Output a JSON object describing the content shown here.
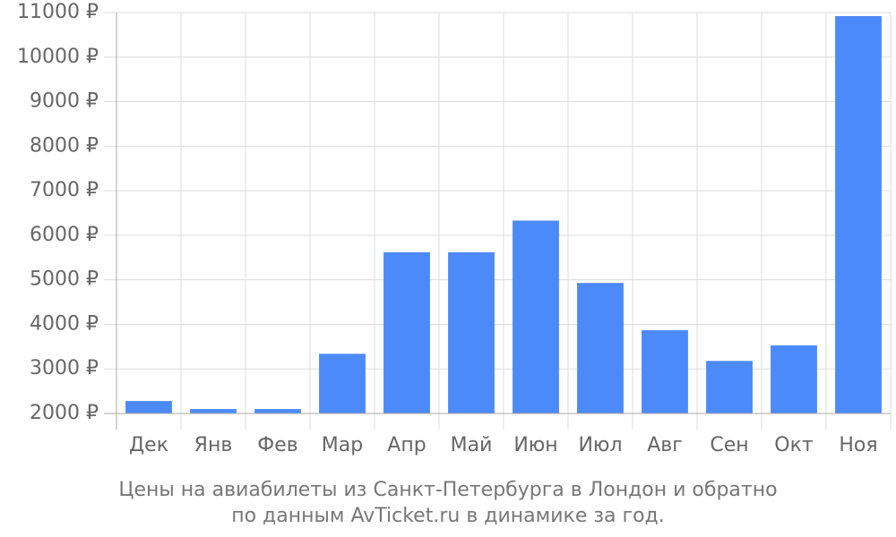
{
  "chart_data": {
    "type": "bar",
    "categories": [
      "Дек",
      "Янв",
      "Фев",
      "Мар",
      "Апр",
      "Май",
      "Июн",
      "Июл",
      "Авг",
      "Сен",
      "Окт",
      "Ноя"
    ],
    "series": [
      {
        "values": [
          2280,
          2100,
          2100,
          3340,
          5620,
          5620,
          6330,
          4930,
          3870,
          3180,
          3530,
          10920
        ]
      }
    ],
    "ylim": [
      2000,
      11000
    ],
    "yticks": [
      2000,
      3000,
      4000,
      5000,
      6000,
      7000,
      8000,
      9000,
      10000,
      11000
    ],
    "y_tick_suffix": " ₽",
    "grid": true,
    "bar_color": "#4d8af9"
  },
  "caption": {
    "line1": "Цены на авиабилеты из Санкт-Петербурга в Лондон и обратно",
    "line2": "по данным AvTicket.ru в динамике за год."
  }
}
